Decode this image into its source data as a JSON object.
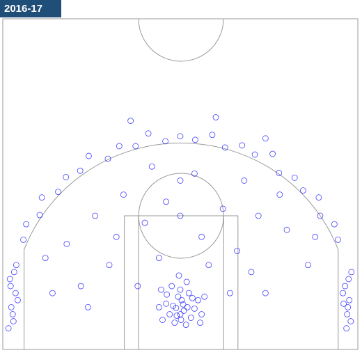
{
  "chart_data": {
    "type": "scatter",
    "title": "2016-17",
    "color": "#0000ff",
    "xlim": [
      -25,
      25
    ],
    "ylim": [
      0,
      47
    ],
    "x": [
      0,
      0.5,
      -0.5,
      1,
      -1,
      1.5,
      -1.5,
      0.2,
      -0.3,
      2,
      -2,
      0.8,
      -0.8,
      2.5,
      -2.5,
      0,
      1.2,
      -1.2,
      3,
      -3,
      0.4,
      -0.6,
      1.7,
      -1.9,
      0.1,
      2.8,
      -2.7,
      0.9,
      -0.2,
      3.4,
      -23.5,
      -23.8,
      -23.2,
      -24,
      -23.6,
      -22.9,
      -24.2,
      -23.4,
      -23.9,
      -23.1,
      23.5,
      23.8,
      23.2,
      24,
      23.6,
      22.9,
      24.1,
      23.4,
      23.7,
      23.0,
      22.2,
      21.7,
      19.7,
      19.5,
      17.3,
      16.1,
      13.9,
      13.0,
      10.5,
      8.7,
      6.3,
      4.5,
      2.1,
      0,
      -2.1,
      -4.5,
      -6.3,
      -8.6,
      -10.2,
      -12.9,
      -14.1,
      -16.1,
      -17.2,
      -19.5,
      -19.8,
      -21.7,
      -22.1,
      5,
      -7,
      12,
      -10,
      8,
      -5,
      6,
      -14,
      12,
      -8,
      3,
      -16,
      15,
      0,
      -3,
      10,
      -12,
      14,
      -18,
      18,
      -6,
      7,
      0,
      -2,
      4,
      -9,
      11,
      -19,
      19,
      2,
      -4,
      9,
      -13
    ],
    "y": [
      5,
      5.5,
      4.8,
      6,
      6.2,
      4.5,
      5,
      7,
      7.5,
      5.8,
      6.5,
      3.5,
      3.8,
      7,
      4.2,
      8.5,
      8,
      9,
      5,
      6,
      6.4,
      5.9,
      7.3,
      7.8,
      4.2,
      3.8,
      8.5,
      9.6,
      10.5,
      7.5,
      4,
      6,
      8,
      10,
      5,
      7,
      3,
      11,
      9,
      12,
      5,
      7,
      9,
      4,
      6,
      8,
      11,
      3,
      10,
      6.5,
      15.6,
      17.8,
      19.0,
      21.6,
      22.6,
      24.4,
      25.1,
      27.8,
      27.7,
      29.0,
      28.7,
      30.5,
      29.8,
      30.3,
      29.6,
      30.7,
      28.9,
      28.9,
      27.1,
      27.5,
      25.4,
      24.5,
      22.4,
      21.6,
      19.1,
      17.8,
      15.6,
      33,
      32.5,
      30,
      12,
      14,
      18,
      20,
      9,
      8,
      22,
      16,
      15,
      17,
      19,
      13,
      11,
      19,
      22,
      8,
      12,
      9,
      8,
      24,
      21,
      12,
      16,
      19,
      13,
      16,
      25,
      26,
      24,
      6
    ]
  }
}
